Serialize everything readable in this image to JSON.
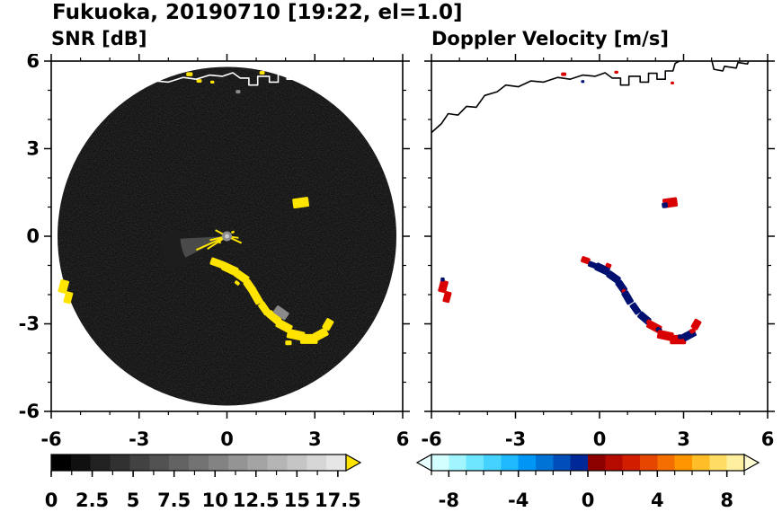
{
  "title": "Fukuoka, 20190710 [19:22, el=1.0]",
  "colors": {
    "background": "#ffffff",
    "frame": "#000000",
    "radar_fill": "#000000",
    "echo_yellow": "#ffe400",
    "doppler_negative_navy": "#001070",
    "doppler_positive_red": "#d80000",
    "gray_echo": "#8a8a8a",
    "coast_left": "#ffffff",
    "coast_right": "#000000"
  },
  "coastline": {
    "paths": [
      [
        [
          -6,
          3.55
        ],
        [
          -5.65,
          3.85
        ],
        [
          -5.4,
          4.2
        ],
        [
          -5.05,
          4.15
        ],
        [
          -4.75,
          4.45
        ],
        [
          -4.4,
          4.42
        ],
        [
          -4.1,
          4.82
        ],
        [
          -3.65,
          4.95
        ],
        [
          -3.35,
          5.18
        ],
        [
          -2.9,
          5.12
        ],
        [
          -2.45,
          5.32
        ],
        [
          -2.0,
          5.28
        ],
        [
          -1.5,
          5.44
        ],
        [
          -1.05,
          5.38
        ],
        [
          -0.6,
          5.52
        ],
        [
          -0.15,
          5.48
        ],
        [
          0.2,
          5.6
        ],
        [
          0.45,
          5.42
        ],
        [
          0.75,
          5.42
        ],
        [
          0.75,
          5.18
        ],
        [
          1.05,
          5.18
        ],
        [
          1.05,
          5.48
        ],
        [
          1.45,
          5.48
        ],
        [
          1.45,
          5.28
        ],
        [
          1.75,
          5.28
        ],
        [
          1.75,
          5.58
        ],
        [
          2.05,
          5.58
        ],
        [
          2.05,
          5.38
        ],
        [
          2.35,
          5.38
        ],
        [
          2.35,
          5.66
        ],
        [
          2.62,
          5.66
        ],
        [
          2.7,
          5.92
        ],
        [
          2.95,
          6.05
        ]
      ],
      [
        [
          4.0,
          6.05
        ],
        [
          4.08,
          5.72
        ],
        [
          4.4,
          5.66
        ],
        [
          4.46,
          5.82
        ],
        [
          4.88,
          5.76
        ],
        [
          4.94,
          5.95
        ],
        [
          5.28,
          5.9
        ],
        [
          5.34,
          6.05
        ]
      ]
    ]
  },
  "chart_data": [
    {
      "type": "heatmap",
      "title": "SNR [dB]",
      "xlim": [
        -6,
        6
      ],
      "ylim": [
        -6,
        6
      ],
      "xticks": [
        -6,
        -3,
        0,
        3,
        6
      ],
      "yticks": [
        -6,
        -3,
        0,
        3,
        6
      ],
      "xtick_labels": [
        "-6",
        "-3",
        "0",
        "3",
        "6"
      ],
      "ytick_labels": [
        "-6",
        "-3",
        "0",
        "3",
        "6"
      ],
      "tick_minor_step": 1,
      "scan_circle": {
        "cx": 0,
        "cy": 0,
        "r": 5.8
      },
      "colorbar": {
        "range": [
          0,
          18
        ],
        "values": [
          0,
          2.5,
          5,
          7.5,
          10,
          12.5,
          15,
          17.5
        ],
        "labels": [
          "0",
          "2.5",
          "5",
          "7.5",
          "10",
          "12.5",
          "15",
          "17.5"
        ],
        "minor_step": 1.25,
        "colors": [
          "#000000",
          "#101010",
          "#212121",
          "#313131",
          "#424242",
          "#525252",
          "#636363",
          "#737373",
          "#838383",
          "#949494",
          "#a4a4a4",
          "#b5b5b5",
          "#c5c5c5",
          "#d6d6d6",
          "#e6e6e6"
        ],
        "tip_right": "#ffe400"
      },
      "center": {
        "wedges": [
          {
            "a1": 176,
            "a2": 220,
            "r": 2.3,
            "fill": "#1d1d1d"
          },
          {
            "a1": 183,
            "a2": 212,
            "r": 1.6,
            "fill": "#4a4a4a"
          }
        ],
        "spikes": [
          {
            "a": 204,
            "l": 1.15
          },
          {
            "a": 213,
            "l": 0.8
          },
          {
            "a": 193,
            "l": 0.6
          },
          {
            "a": 335,
            "l": 0.55
          },
          {
            "a": 352,
            "l": 0.4
          },
          {
            "a": 152,
            "l": 0.45
          }
        ],
        "dot_outer": "#8c8c8c",
        "dot_inner": "#c8c8c8"
      },
      "echoes": [
        {
          "x": -0.32,
          "y": -0.92,
          "w": 0.5,
          "h": 0.26,
          "rot": 20,
          "c": "y"
        },
        {
          "x": 0.1,
          "y": -1.12,
          "w": 0.55,
          "h": 0.3,
          "rot": 25,
          "c": "y"
        },
        {
          "x": 0.5,
          "y": -1.38,
          "w": 0.5,
          "h": 0.28,
          "rot": 35,
          "c": "y"
        },
        {
          "x": 0.78,
          "y": -1.72,
          "w": 0.45,
          "h": 0.28,
          "rot": 55,
          "c": "y"
        },
        {
          "x": 1.0,
          "y": -2.08,
          "w": 0.5,
          "h": 0.28,
          "rot": 60,
          "c": "y"
        },
        {
          "x": 1.28,
          "y": -2.48,
          "w": 0.45,
          "h": 0.26,
          "rot": 55,
          "c": "y"
        },
        {
          "x": 1.6,
          "y": -2.78,
          "w": 0.5,
          "h": 0.28,
          "rot": 40,
          "c": "y"
        },
        {
          "x": 1.95,
          "y": -3.08,
          "w": 0.55,
          "h": 0.3,
          "rot": 28,
          "c": "y"
        },
        {
          "x": 2.35,
          "y": -3.38,
          "w": 0.6,
          "h": 0.32,
          "rot": 12,
          "c": "y"
        },
        {
          "x": 2.8,
          "y": -3.52,
          "w": 0.6,
          "h": 0.34,
          "rot": 0,
          "c": "y"
        },
        {
          "x": 3.2,
          "y": -3.36,
          "w": 0.5,
          "h": 0.3,
          "rot": -28,
          "c": "y"
        },
        {
          "x": 3.45,
          "y": -3.02,
          "w": 0.38,
          "h": 0.28,
          "rot": -60,
          "c": "y"
        },
        {
          "x": 2.1,
          "y": -3.65,
          "w": 0.22,
          "h": 0.16,
          "rot": 0,
          "c": "y"
        },
        {
          "x": 1.18,
          "y": -2.25,
          "w": 0.2,
          "h": 0.14,
          "rot": 50,
          "c": "y"
        },
        {
          "x": 0.35,
          "y": -1.6,
          "w": 0.18,
          "h": 0.12,
          "rot": 40,
          "c": "y"
        },
        {
          "x": 1.85,
          "y": -2.62,
          "w": 0.5,
          "h": 0.3,
          "rot": 35,
          "c": "g"
        },
        {
          "x": 2.52,
          "y": 1.15,
          "w": 0.55,
          "h": 0.34,
          "rot": -8,
          "c": "y"
        },
        {
          "x": -5.58,
          "y": -1.72,
          "w": 0.3,
          "h": 0.45,
          "rot": 15,
          "c": "y"
        },
        {
          "x": -5.42,
          "y": -2.1,
          "w": 0.26,
          "h": 0.4,
          "rot": 15,
          "c": "y"
        },
        {
          "x": -1.28,
          "y": 5.55,
          "w": 0.22,
          "h": 0.14,
          "rot": 0,
          "c": "y"
        },
        {
          "x": -0.95,
          "y": 5.32,
          "w": 0.18,
          "h": 0.12,
          "rot": 0,
          "c": "y"
        },
        {
          "x": -0.5,
          "y": 5.28,
          "w": 0.14,
          "h": 0.1,
          "rot": 0,
          "c": "y"
        },
        {
          "x": 0.38,
          "y": 4.95,
          "w": 0.16,
          "h": 0.12,
          "rot": 0,
          "c": "g"
        },
        {
          "x": 1.2,
          "y": 5.6,
          "w": 0.18,
          "h": 0.12,
          "rot": 0,
          "c": "y"
        },
        {
          "x": 0.2,
          "y": 0.14,
          "w": 0.12,
          "h": 0.08,
          "rot": -30,
          "c": "y"
        },
        {
          "x": -0.26,
          "y": -0.2,
          "w": 0.12,
          "h": 0.08,
          "rot": 30,
          "c": "y"
        }
      ]
    },
    {
      "type": "heatmap",
      "title": "Doppler Velocity [m/s]",
      "xlim": [
        -6,
        6
      ],
      "ylim": [
        -6,
        6
      ],
      "xticks": [
        -6,
        -3,
        0,
        3,
        6
      ],
      "yticks": [
        -6,
        -3,
        0,
        3,
        6
      ],
      "xtick_labels": [
        "-6",
        "-3",
        "0",
        "3",
        "6"
      ],
      "ytick_labels": [],
      "tick_minor_step": 1,
      "colorbar": {
        "range": [
          -9,
          9
        ],
        "values": [
          -8,
          -4,
          0,
          4,
          8
        ],
        "labels": [
          "-8",
          "-4",
          "0",
          "4",
          "8"
        ],
        "minor_step": 1,
        "colors": [
          "#d2ffff",
          "#a0f5ff",
          "#6ee6ff",
          "#46d2ff",
          "#1eb9ff",
          "#0096f5",
          "#0073d7",
          "#004eb9",
          "#002896",
          "#8c0000",
          "#b40a00",
          "#d21e00",
          "#e64600",
          "#f56e00",
          "#ff9600",
          "#ffbe28",
          "#ffdc64",
          "#fff0a0"
        ],
        "tip_left": "#e8ffff",
        "tip_right": "#fffbd2"
      },
      "echoes": [
        {
          "x": -0.5,
          "y": -0.82,
          "w": 0.3,
          "h": 0.22,
          "rot": 20,
          "c": "r"
        },
        {
          "x": -0.25,
          "y": -0.98,
          "w": 0.3,
          "h": 0.2,
          "rot": 20,
          "c": "n"
        },
        {
          "x": 0.1,
          "y": -1.12,
          "w": 0.5,
          "h": 0.28,
          "rot": 25,
          "c": "n"
        },
        {
          "x": 0.32,
          "y": -1.0,
          "w": 0.2,
          "h": 0.14,
          "rot": 25,
          "c": "r"
        },
        {
          "x": 0.5,
          "y": -1.4,
          "w": 0.48,
          "h": 0.26,
          "rot": 35,
          "c": "n"
        },
        {
          "x": 0.78,
          "y": -1.72,
          "w": 0.42,
          "h": 0.26,
          "rot": 55,
          "c": "n"
        },
        {
          "x": 0.88,
          "y": -1.9,
          "w": 0.18,
          "h": 0.14,
          "rot": 55,
          "c": "r"
        },
        {
          "x": 1.0,
          "y": -2.1,
          "w": 0.46,
          "h": 0.26,
          "rot": 60,
          "c": "n"
        },
        {
          "x": 1.28,
          "y": -2.48,
          "w": 0.4,
          "h": 0.24,
          "rot": 55,
          "c": "n"
        },
        {
          "x": 1.6,
          "y": -2.8,
          "w": 0.46,
          "h": 0.26,
          "rot": 40,
          "c": "n"
        },
        {
          "x": 1.78,
          "y": -2.95,
          "w": 0.2,
          "h": 0.16,
          "rot": 40,
          "c": "r"
        },
        {
          "x": 1.95,
          "y": -3.1,
          "w": 0.5,
          "h": 0.28,
          "rot": 28,
          "c": "r"
        },
        {
          "x": 2.12,
          "y": -3.2,
          "w": 0.2,
          "h": 0.15,
          "rot": 28,
          "c": "n"
        },
        {
          "x": 2.35,
          "y": -3.4,
          "w": 0.55,
          "h": 0.3,
          "rot": 12,
          "c": "r"
        },
        {
          "x": 2.8,
          "y": -3.54,
          "w": 0.55,
          "h": 0.32,
          "rot": 0,
          "c": "r"
        },
        {
          "x": 2.9,
          "y": -3.44,
          "w": 0.2,
          "h": 0.16,
          "rot": 0,
          "c": "n"
        },
        {
          "x": 3.2,
          "y": -3.38,
          "w": 0.46,
          "h": 0.28,
          "rot": -28,
          "c": "n"
        },
        {
          "x": 3.32,
          "y": -3.24,
          "w": 0.2,
          "h": 0.16,
          "rot": -28,
          "c": "r"
        },
        {
          "x": 3.45,
          "y": -3.02,
          "w": 0.34,
          "h": 0.26,
          "rot": -60,
          "c": "r"
        },
        {
          "x": 2.52,
          "y": 1.15,
          "w": 0.5,
          "h": 0.32,
          "rot": -8,
          "c": "r"
        },
        {
          "x": 2.33,
          "y": 1.06,
          "w": 0.2,
          "h": 0.18,
          "rot": -8,
          "c": "n"
        },
        {
          "x": -5.58,
          "y": -1.72,
          "w": 0.28,
          "h": 0.42,
          "rot": 15,
          "c": "r"
        },
        {
          "x": -5.44,
          "y": -2.08,
          "w": 0.24,
          "h": 0.38,
          "rot": 15,
          "c": "r"
        },
        {
          "x": -5.6,
          "y": -1.48,
          "w": 0.14,
          "h": 0.14,
          "rot": 0,
          "c": "n"
        },
        {
          "x": -1.28,
          "y": 5.55,
          "w": 0.18,
          "h": 0.12,
          "rot": 0,
          "c": "r"
        },
        {
          "x": -0.6,
          "y": 5.3,
          "w": 0.12,
          "h": 0.1,
          "rot": 0,
          "c": "n"
        },
        {
          "x": 0.6,
          "y": 5.62,
          "w": 0.14,
          "h": 0.1,
          "rot": 0,
          "c": "r"
        },
        {
          "x": 2.6,
          "y": 5.25,
          "w": 0.12,
          "h": 0.1,
          "rot": 0,
          "c": "r"
        }
      ]
    }
  ]
}
